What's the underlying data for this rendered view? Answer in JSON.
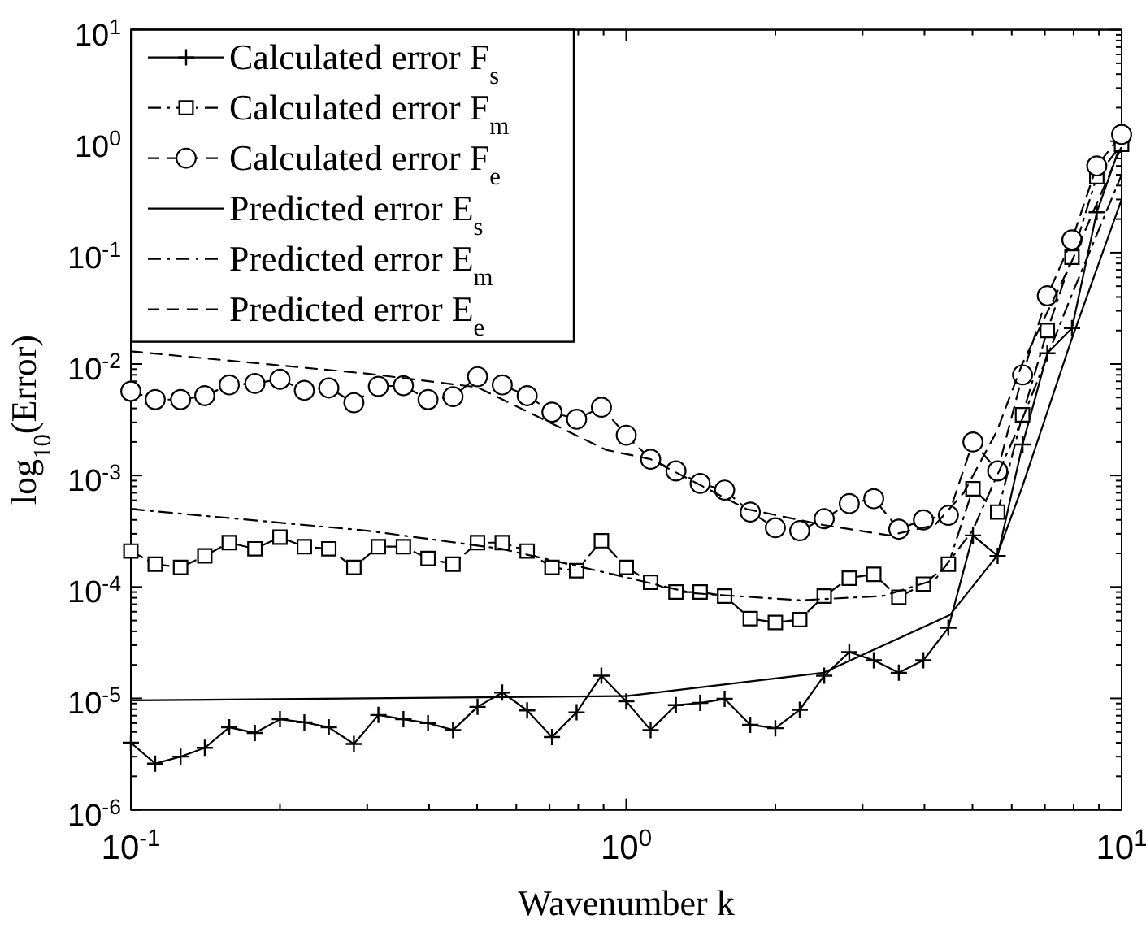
{
  "chart_data": {
    "type": "line",
    "xlabel": "Wavenumber k",
    "ylabel": "log$_{10}$(Error)",
    "log": "xy",
    "grid": false,
    "legend": "top left",
    "xlim": [
      0.1,
      10
    ],
    "ylim": [
      1e-06,
      10
    ],
    "xticks": [
      {
        "value": 0.1,
        "label": "10$^{-1}$"
      },
      {
        "value": 1,
        "label": "10$^{0}$"
      },
      {
        "value": 10,
        "label": "10$^{1}$"
      }
    ],
    "yticks": [
      {
        "value": 1e-06,
        "label": "10$^{-6}$"
      },
      {
        "value": 1e-05,
        "label": "10$^{-5}$"
      },
      {
        "value": 0.0001,
        "label": "10$^{-4}$"
      },
      {
        "value": 0.001,
        "label": "10$^{-3}$"
      },
      {
        "value": 0.01,
        "label": "10$^{-2}$"
      },
      {
        "value": 0.1,
        "label": "10$^{-1}$"
      },
      {
        "value": 1,
        "label": "10$^{0}$"
      },
      {
        "value": 10,
        "label": "10$^{1}$"
      }
    ],
    "x": [
      0.1,
      0.112,
      0.126,
      0.141,
      0.158,
      0.178,
      0.2,
      0.224,
      0.251,
      0.282,
      0.316,
      0.355,
      0.398,
      0.447,
      0.501,
      0.562,
      0.631,
      0.708,
      0.794,
      0.891,
      1,
      1.12,
      1.26,
      1.41,
      1.58,
      1.78,
      2,
      2.24,
      2.51,
      2.82,
      3.16,
      3.55,
      3.98,
      4.47,
      5.01,
      5.62,
      6.31,
      7.08,
      7.94,
      8.91,
      10
    ],
    "series": [
      {
        "name": "Calculated error F$_{s}$",
        "color": "#000000",
        "marker": "cross",
        "line_style": "solid",
        "values": [
          4e-06,
          2.6e-06,
          3e-06,
          3.6e-06,
          5.5e-06,
          4.9e-06,
          6.5e-06,
          6.1e-06,
          5.5e-06,
          3.9e-06,
          7.1e-06,
          6.5e-06,
          6e-06,
          5.2e-06,
          8.4e-06,
          1.13e-05,
          7.8e-06,
          4.5e-06,
          7.5e-06,
          1.6e-05,
          9.4e-06,
          5.2e-06,
          8.7e-06,
          9.1e-06,
          9.9e-06,
          5.8e-06,
          5.4e-06,
          7.9e-06,
          1.6e-05,
          2.6e-05,
          2.2e-05,
          1.7e-05,
          2.2e-05,
          4.3e-05,
          0.00029,
          0.00019,
          0.0019,
          0.0125,
          0.021,
          0.23,
          0.99
        ]
      },
      {
        "name": "Calculated error F$_{m}$",
        "color": "#000000",
        "marker": "square",
        "line_style": "dashdot",
        "values": [
          0.00021,
          0.00016,
          0.00015,
          0.00019,
          0.00025,
          0.00022,
          0.00028,
          0.00023,
          0.00022,
          0.00015,
          0.00023,
          0.00023,
          0.00018,
          0.00016,
          0.00025,
          0.00025,
          0.00021,
          0.00015,
          0.00014,
          0.00026,
          0.00015,
          0.00011,
          9e-05,
          9e-05,
          8.3e-05,
          5.2e-05,
          4.8e-05,
          5.1e-05,
          8.3e-05,
          0.00012,
          0.00013,
          8.1e-05,
          0.000106,
          0.00016,
          0.00076,
          0.00047,
          0.0035,
          0.02,
          0.091,
          0.48,
          0.94
        ]
      },
      {
        "name": "Calculated error F$_{e}$",
        "color": "#000000",
        "marker": "circle",
        "line_style": "dashed",
        "values": [
          0.0057,
          0.0048,
          0.0048,
          0.0052,
          0.0065,
          0.0067,
          0.0073,
          0.0058,
          0.0061,
          0.0045,
          0.0063,
          0.0064,
          0.0048,
          0.0051,
          0.0077,
          0.0065,
          0.0052,
          0.0037,
          0.0032,
          0.0041,
          0.0023,
          0.0014,
          0.0011,
          0.00085,
          0.00074,
          0.00047,
          0.00034,
          0.00032,
          0.00041,
          0.00056,
          0.00062,
          0.00033,
          0.0004,
          0.00044,
          0.002,
          0.0011,
          0.008,
          0.041,
          0.13,
          0.6,
          1.15
        ]
      },
      {
        "name": "Predicted error E$_{s}$",
        "color": "#000000",
        "marker": "none",
        "line_style": "solid",
        "x": [
          0.1,
          0.3,
          1,
          2.5,
          4.5,
          5.6,
          6.3,
          7.9,
          10
        ],
        "values": [
          9.6e-06,
          1e-05,
          1.05e-05,
          1.7e-05,
          5.6e-05,
          0.00019,
          0.00079,
          0.016,
          0.3
        ]
      },
      {
        "name": "Predicted error E$_{m}$",
        "color": "#000000",
        "marker": "none",
        "line_style": "dashdot",
        "x": [
          0.1,
          0.3,
          0.56,
          0.94,
          1.36,
          2.25,
          3.3,
          4.2,
          5,
          6.3,
          7.9,
          10
        ],
        "values": [
          0.0005,
          0.00032,
          0.00022,
          0.00013,
          8.8e-05,
          7.6e-05,
          8.3e-05,
          0.000116,
          0.00032,
          0.0032,
          0.04,
          0.5
        ]
      },
      {
        "name": "Predicted error E$_{e}$",
        "color": "#000000",
        "marker": "none",
        "line_style": "dashed",
        "x": [
          0.1,
          0.3,
          0.5,
          0.91,
          1.12,
          1.75,
          2.5,
          3.4,
          4.2,
          4.8,
          5.6,
          6.3,
          7.9,
          10
        ],
        "values": [
          0.013,
          0.0082,
          0.0062,
          0.0017,
          0.0014,
          0.0005,
          0.00036,
          0.00029,
          0.00036,
          0.0007,
          0.0025,
          0.01,
          0.08,
          0.9
        ]
      }
    ]
  }
}
